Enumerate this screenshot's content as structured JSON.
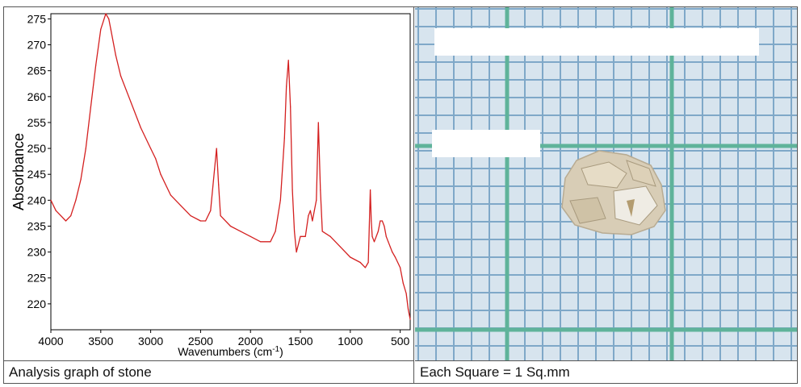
{
  "captions": {
    "left": "Analysis graph of stone",
    "right": "Each Square = 1 Sq.mm"
  },
  "photo": {
    "description_icon": "stone-fragment-on-graph-paper",
    "grid_color": "#5fb39a",
    "paper_color": "#d7e4ee",
    "minor_line_color": "#7fa8c8",
    "stone_color": "#d8cdb6"
  },
  "colors": {
    "spectrum_line": "#d42020",
    "axis": "#000000"
  },
  "chart_data": {
    "type": "line",
    "xlabel": "Wavenumbers (cm",
    "xlabel_sup": "-1",
    "xlabel_close": ")",
    "ylabel": "Absorbance",
    "xlim": [
      4000,
      400
    ],
    "ylim": [
      215,
      276
    ],
    "x_reversed": true,
    "x_ticks": [
      4000,
      3500,
      3000,
      2500,
      2000,
      1500,
      1000,
      500
    ],
    "y_ticks": [
      220,
      225,
      230,
      235,
      240,
      245,
      250,
      255,
      260,
      265,
      270,
      275
    ],
    "grid": false,
    "series": [
      {
        "color": "#d42020",
        "x": [
          4000,
          3950,
          3900,
          3850,
          3800,
          3750,
          3700,
          3650,
          3600,
          3550,
          3500,
          3450,
          3420,
          3400,
          3350,
          3300,
          3200,
          3100,
          3000,
          2950,
          2900,
          2800,
          2700,
          2600,
          2500,
          2450,
          2400,
          2360,
          2340,
          2320,
          2300,
          2200,
          2100,
          2000,
          1900,
          1800,
          1750,
          1700,
          1660,
          1640,
          1620,
          1600,
          1580,
          1560,
          1540,
          1500,
          1450,
          1420,
          1400,
          1380,
          1360,
          1340,
          1320,
          1300,
          1280,
          1200,
          1100,
          1000,
          900,
          850,
          820,
          800,
          790,
          780,
          760,
          720,
          700,
          680,
          660,
          640,
          620,
          600,
          580,
          550,
          500,
          470,
          440,
          420,
          400
        ],
        "y": [
          240,
          238,
          237,
          236,
          237,
          240,
          244,
          250,
          258,
          266,
          273,
          276,
          275,
          273,
          268,
          264,
          259,
          254,
          250,
          248,
          245,
          241,
          239,
          237,
          236,
          236,
          238,
          246,
          250,
          243,
          237,
          235,
          234,
          233,
          232,
          232,
          234,
          240,
          252,
          262,
          267,
          258,
          242,
          234,
          230,
          233,
          233,
          237,
          238,
          236,
          238,
          240,
          255,
          242,
          234,
          233,
          231,
          229,
          228,
          227,
          228,
          242,
          236,
          233,
          232,
          234,
          236,
          236,
          235,
          233,
          232,
          231,
          230,
          229,
          227,
          224,
          222,
          219,
          217
        ]
      }
    ]
  }
}
